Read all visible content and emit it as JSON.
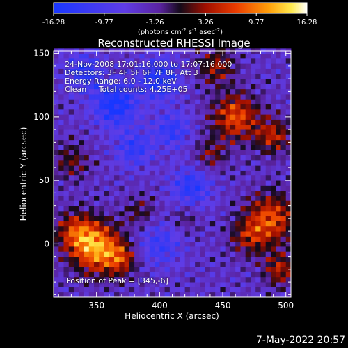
{
  "chart_data": {
    "type": "heatmap",
    "title": "Reconstructed RHESSI Image",
    "xlabel": "Heliocentric X (arcsec)",
    "ylabel": "Heliocentric Y (arcsec)",
    "xlim": [
      316,
      504
    ],
    "ylim": [
      -42,
      152
    ],
    "x_ticks": [
      350,
      400,
      450,
      500
    ],
    "y_ticks": [
      0,
      50,
      100,
      150
    ],
    "x_minor_step": 10,
    "y_minor_step": 10,
    "colorbar": {
      "ticks": [
        "-16.28",
        "-9.77",
        "-3.26",
        "3.26",
        "9.77",
        "16.28"
      ],
      "min": -16.28,
      "max": 16.28,
      "unit_label": "(photons cm",
      "unit_exp1": "-2",
      "unit_mid": " s",
      "unit_exp2": "-1",
      "unit_mid2": " asec",
      "unit_exp3": "-2",
      "unit_end": ")"
    },
    "annotations": {
      "time": "24-Nov-2008 17:01:16.000 to 17:07:16.000",
      "detectors": "Detectors: 3F 4F 5F 6F 7F 8F, Att 3",
      "energy": "Energy Range: 6.0 - 12.0 keV",
      "clean": "Clean     Total counts: 4.25E+05",
      "peak": "Position of Peak = [345,-6]"
    },
    "peak_position": [
      345,
      -6
    ],
    "sources": [
      {
        "x": 350,
        "y": -3,
        "sigma": 14,
        "amp": 16.0
      },
      {
        "x": 333,
        "y": 10,
        "sigma": 11,
        "amp": 9.0
      },
      {
        "x": 370,
        "y": -12,
        "sigma": 9,
        "amp": 8.0
      },
      {
        "x": 488,
        "y": 20,
        "sigma": 14,
        "amp": 12.0
      },
      {
        "x": 470,
        "y": 5,
        "sigma": 10,
        "amp": 7.0
      },
      {
        "x": 495,
        "y": -20,
        "sigma": 9,
        "amp": 9.0
      },
      {
        "x": 460,
        "y": 100,
        "sigma": 13,
        "amp": 12.0
      },
      {
        "x": 490,
        "y": 85,
        "sigma": 10,
        "amp": 9.0
      },
      {
        "x": 445,
        "y": 140,
        "sigma": 10,
        "amp": 8.0
      },
      {
        "x": 440,
        "y": 70,
        "sigma": 9,
        "amp": 6.0
      },
      {
        "x": 330,
        "y": 65,
        "sigma": 10,
        "amp": 6.0
      },
      {
        "x": 385,
        "y": 25,
        "sigma": 9,
        "amp": 5.0
      },
      {
        "x": 420,
        "y": 20,
        "sigma": 8,
        "amp": 4.0
      },
      {
        "x": 365,
        "y": 110,
        "sigma": 12,
        "amp": -12.0
      },
      {
        "x": 400,
        "y": 130,
        "sigma": 11,
        "amp": -11.0
      },
      {
        "x": 340,
        "y": 135,
        "sigma": 10,
        "amp": -9.0
      },
      {
        "x": 410,
        "y": 90,
        "sigma": 10,
        "amp": -8.0
      },
      {
        "x": 425,
        "y": 45,
        "sigma": 11,
        "amp": -9.0
      },
      {
        "x": 400,
        "y": 0,
        "sigma": 12,
        "amp": -7.0
      },
      {
        "x": 380,
        "y": 75,
        "sigma": 10,
        "amp": -8.0
      }
    ],
    "background": -5.0,
    "cell": 4
  },
  "footer": {
    "date": "7-May-2022 20:57"
  }
}
